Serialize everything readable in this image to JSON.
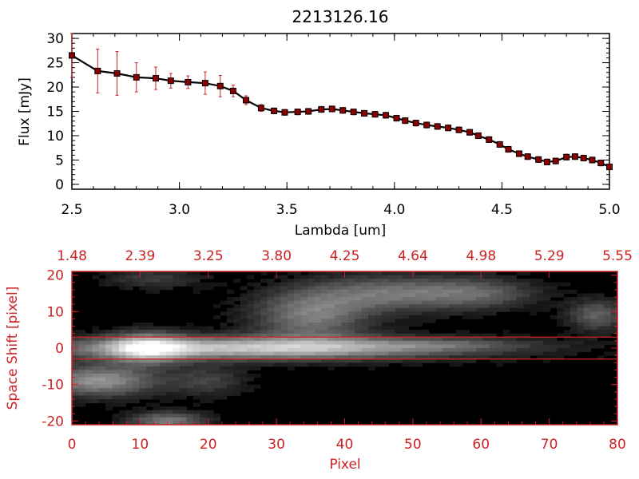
{
  "colors": {
    "axis": "#000000",
    "accent_red": "#cc2222",
    "marker_fill": "#8b0000",
    "line": "#000000",
    "image_bg": "#000000"
  },
  "chart_data": [
    {
      "type": "line",
      "title": "2213126.16",
      "xlabel": "Lambda [um]",
      "ylabel": "Flux [mJy]",
      "xlim": [
        2.5,
        5.0
      ],
      "ylim": [
        -1,
        31
      ],
      "xticks": [
        2.5,
        3.0,
        3.5,
        4.0,
        4.5,
        5.0
      ],
      "xtick_labels": [
        "2.5",
        "3.0",
        "3.5",
        "4.0",
        "4.5",
        "5.0"
      ],
      "yticks": [
        0,
        5,
        10,
        15,
        20,
        25,
        30
      ],
      "ytick_labels": [
        "0",
        "5",
        "10",
        "15",
        "20",
        "25",
        "30"
      ],
      "grid": false,
      "series": [
        {
          "x": [
            2.5,
            2.62,
            2.71,
            2.8,
            2.89,
            2.96,
            3.04,
            3.12,
            3.19,
            3.25,
            3.31,
            3.38,
            3.44,
            3.49,
            3.55,
            3.6,
            3.66,
            3.71,
            3.76,
            3.81,
            3.86,
            3.91,
            3.96,
            4.01,
            4.05,
            4.1,
            4.15,
            4.2,
            4.25,
            4.3,
            4.35,
            4.39,
            4.44,
            4.49,
            4.53,
            4.58,
            4.62,
            4.67,
            4.71,
            4.75,
            4.8,
            4.84,
            4.88,
            4.92,
            4.96,
            5.0
          ],
          "y": [
            26.5,
            23.3,
            22.8,
            22.0,
            21.8,
            21.3,
            21.0,
            20.8,
            20.2,
            19.2,
            17.3,
            15.7,
            15.1,
            14.8,
            14.9,
            15.0,
            15.4,
            15.5,
            15.2,
            14.9,
            14.6,
            14.4,
            14.2,
            13.6,
            13.1,
            12.6,
            12.2,
            11.9,
            11.6,
            11.2,
            10.7,
            10.0,
            9.2,
            8.2,
            7.2,
            6.3,
            5.7,
            5.1,
            4.6,
            4.8,
            5.6,
            5.7,
            5.4,
            5.0,
            4.4,
            3.6
          ],
          "yerr": [
            4.5,
            4.5,
            4.5,
            3.0,
            2.3,
            1.5,
            1.3,
            2.3,
            2.2,
            1.2,
            0.9,
            0.7,
            0.6,
            0.6,
            0.6,
            0.6,
            0.6,
            0.6,
            0.6,
            0.6,
            0.6,
            0.6,
            0.6,
            0.6,
            0.6,
            0.6,
            0.6,
            0.6,
            0.6,
            0.6,
            0.6,
            0.6,
            0.6,
            0.6,
            0.6,
            0.6,
            0.6,
            0.6,
            0.6,
            0.6,
            0.6,
            0.6,
            0.6,
            0.6,
            0.6,
            0.6
          ]
        }
      ]
    },
    {
      "type": "heatmap",
      "xlabel": "Pixel",
      "ylabel": "Space Shift [pixel]",
      "xlim": [
        0,
        80
      ],
      "ylim": [
        -21,
        21
      ],
      "xticks": [
        0,
        10,
        20,
        30,
        40,
        50,
        60,
        70,
        80
      ],
      "xtick_labels": [
        "0",
        "10",
        "20",
        "30",
        "40",
        "50",
        "60",
        "70",
        "80"
      ],
      "yticks": [
        -20,
        -10,
        0,
        10,
        20
      ],
      "ytick_labels": [
        "-20",
        "-10",
        "0",
        "10",
        "20"
      ],
      "top_tick_labels": [
        "1.48",
        "2.39",
        "3.25",
        "3.80",
        "4.25",
        "4.64",
        "4.98",
        "5.29",
        "5.55"
      ],
      "extraction_lines": [
        3,
        -3
      ],
      "blobs": [
        {
          "x": 27,
          "y": 0,
          "sx": 22,
          "sy": 2.2,
          "v": 0.75
        },
        {
          "x": 11,
          "y": 0,
          "sx": 4,
          "sy": 3,
          "v": 0.55
        },
        {
          "x": 55,
          "y": 1,
          "sx": 9,
          "sy": 1.2,
          "v": 0.15
        },
        {
          "x": 35,
          "y": 9,
          "sx": 6,
          "sy": 5,
          "v": 0.45
        },
        {
          "x": 47,
          "y": 15,
          "sx": 8,
          "sy": 3.5,
          "v": 0.4
        },
        {
          "x": 60,
          "y": 15,
          "sx": 6,
          "sy": 3,
          "v": 0.3
        },
        {
          "x": 77,
          "y": 9,
          "sx": 3,
          "sy": 3,
          "v": 0.35
        },
        {
          "x": 4,
          "y": -9,
          "sx": 6,
          "sy": 3,
          "v": 0.55
        },
        {
          "x": 14,
          "y": -20,
          "sx": 4,
          "sy": 1.8,
          "v": 0.45
        },
        {
          "x": 12,
          "y": 19,
          "sx": 5,
          "sy": 2,
          "v": 0.2
        },
        {
          "x": 20,
          "y": -9,
          "sx": 4,
          "sy": 3,
          "v": 0.22
        }
      ]
    }
  ]
}
